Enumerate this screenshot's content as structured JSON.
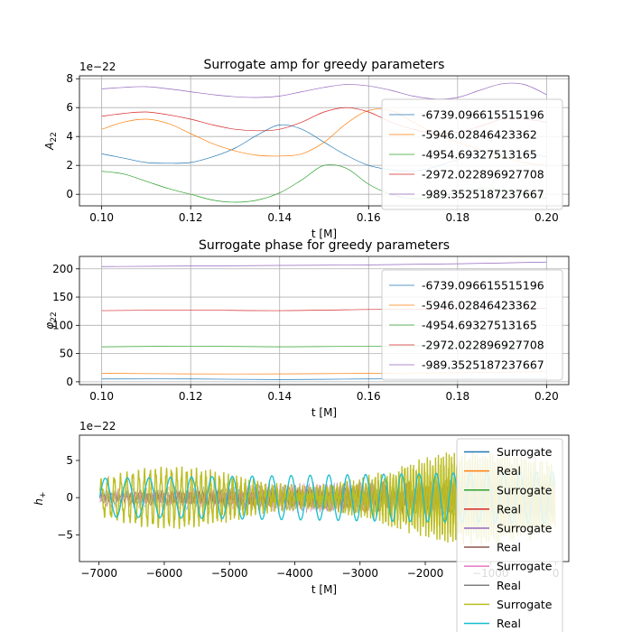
{
  "chart_data": [
    {
      "type": "line",
      "title": "Surrogate amp for greedy parameters",
      "xlabel": "t [M]",
      "ylabel": "A_22",
      "ylabel_main": "A",
      "ylabel_sub": "22",
      "offset_text": "1e−22",
      "xlim": [
        0.095,
        0.205
      ],
      "ylim": [
        -0.8,
        8.2
      ],
      "xticks": [
        0.1,
        0.12,
        0.14,
        0.16,
        0.18,
        0.2
      ],
      "xtick_labels": [
        "0.10",
        "0.12",
        "0.14",
        "0.16",
        "0.18",
        "0.20"
      ],
      "yticks": [
        0,
        2,
        4,
        6,
        8
      ],
      "ytick_labels": [
        "0",
        "2",
        "4",
        "6",
        "8"
      ],
      "grid": true,
      "legend_position": "right",
      "x": [
        0.1,
        0.105,
        0.11,
        0.115,
        0.12,
        0.125,
        0.13,
        0.135,
        0.14,
        0.145,
        0.15,
        0.155,
        0.16,
        0.165,
        0.17,
        0.175,
        0.18,
        0.185,
        0.19,
        0.195,
        0.2
      ],
      "series": [
        {
          "name": "-6739.096615515196",
          "color": "#1f77b4",
          "values": [
            2.8,
            2.5,
            2.2,
            2.15,
            2.2,
            2.6,
            3.2,
            4.1,
            4.8,
            4.5,
            3.6,
            2.7,
            2.0,
            1.7,
            1.6,
            1.9,
            2.4,
            2.8,
            2.9,
            2.8,
            2.6
          ]
        },
        {
          "name": "-5946.02846423362",
          "color": "#ff7f0e",
          "values": [
            4.5,
            5.0,
            5.2,
            4.9,
            4.2,
            3.5,
            3.0,
            2.7,
            2.65,
            2.8,
            3.6,
            4.9,
            5.8,
            5.8,
            5.0,
            4.2,
            3.6,
            3.1,
            2.6,
            2.2,
            2.0
          ]
        },
        {
          "name": "-4954.69327513165",
          "color": "#2ca02c",
          "values": [
            1.6,
            1.4,
            0.9,
            0.4,
            0.0,
            -0.4,
            -0.55,
            -0.4,
            0.1,
            1.0,
            2.0,
            1.8,
            0.7,
            0.0,
            -0.3,
            -0.2,
            0.1,
            0.4,
            0.3,
            0.0,
            -0.3
          ]
        },
        {
          "name": "-2972.022896927708",
          "color": "#d62728",
          "values": [
            5.4,
            5.6,
            5.7,
            5.5,
            5.2,
            4.8,
            4.5,
            4.4,
            4.5,
            5.0,
            5.7,
            6.0,
            5.7,
            5.0,
            4.5,
            4.2,
            4.3,
            4.7,
            5.2,
            5.2,
            5.0
          ]
        },
        {
          "name": "-989.3525187237667",
          "color": "#9467bd",
          "values": [
            7.3,
            7.4,
            7.45,
            7.3,
            7.1,
            6.9,
            6.75,
            6.7,
            6.8,
            7.1,
            7.4,
            7.6,
            7.5,
            7.2,
            6.8,
            6.6,
            6.7,
            7.2,
            7.65,
            7.6,
            6.9
          ]
        }
      ]
    },
    {
      "type": "line",
      "title": "Surrogate phase for greedy parameters",
      "xlabel": "t [M]",
      "ylabel": "φ_22",
      "ylabel_main": "φ",
      "ylabel_sub": "22",
      "xlim": [
        0.095,
        0.205
      ],
      "ylim": [
        -5,
        222
      ],
      "xticks": [
        0.1,
        0.12,
        0.14,
        0.16,
        0.18,
        0.2
      ],
      "xtick_labels": [
        "0.10",
        "0.12",
        "0.14",
        "0.16",
        "0.18",
        "0.20"
      ],
      "yticks": [
        0,
        50,
        100,
        150,
        200
      ],
      "ytick_labels": [
        "0",
        "50",
        "100",
        "150",
        "200"
      ],
      "grid": true,
      "legend_position": "right",
      "x": [
        0.1,
        0.12,
        0.14,
        0.16,
        0.18,
        0.2
      ],
      "series": [
        {
          "name": "-6739.096615515196",
          "color": "#1f77b4",
          "values": [
            5,
            5,
            4,
            5,
            5,
            6
          ]
        },
        {
          "name": "-5946.02846423362",
          "color": "#ff7f0e",
          "values": [
            15,
            14,
            14,
            15,
            16,
            18
          ]
        },
        {
          "name": "-4954.69327513165",
          "color": "#2ca02c",
          "values": [
            62,
            63,
            62,
            63,
            64,
            65
          ]
        },
        {
          "name": "-2972.022896927708",
          "color": "#d62728",
          "values": [
            126,
            127,
            126,
            128,
            129,
            130
          ]
        },
        {
          "name": "-989.3525187237667",
          "color": "#9467bd",
          "values": [
            204,
            205,
            206,
            207,
            209,
            212
          ]
        }
      ]
    },
    {
      "type": "line",
      "title": "",
      "xlabel": "t [M]",
      "ylabel": "h_+",
      "ylabel_main": "h",
      "ylabel_sub": "+",
      "offset_text": "1e−22",
      "xlim": [
        -7300,
        200
      ],
      "ylim": [
        -8.6,
        8.4
      ],
      "xticks": [
        -7000,
        -6000,
        -5000,
        -4000,
        -3000,
        -2000,
        -1000,
        0
      ],
      "xtick_labels": [
        "−7000",
        "−6000",
        "−5000",
        "−4000",
        "−3000",
        "−2000",
        "−1000",
        "0"
      ],
      "yticks": [
        -5,
        0,
        5
      ],
      "ytick_labels": [
        "−5",
        "0",
        "5"
      ],
      "grid": false,
      "legend_position": "right",
      "t_range": [
        -6990,
        -10
      ],
      "series": [
        {
          "name": "Surrogate",
          "color": "#1f77b4"
        },
        {
          "name": "Real",
          "color": "#ff7f0e"
        },
        {
          "name": "Surrogate",
          "color": "#2ca02c"
        },
        {
          "name": "Real",
          "color": "#d62728"
        },
        {
          "name": "Surrogate",
          "color": "#9467bd"
        },
        {
          "name": "Real",
          "color": "#8c564b"
        },
        {
          "name": "Surrogate",
          "color": "#e377c2"
        },
        {
          "name": "Real",
          "color": "#7f7f7f"
        },
        {
          "name": "Surrogate",
          "color": "#bcbd22"
        },
        {
          "name": "Real",
          "color": "#17becf"
        }
      ]
    }
  ]
}
